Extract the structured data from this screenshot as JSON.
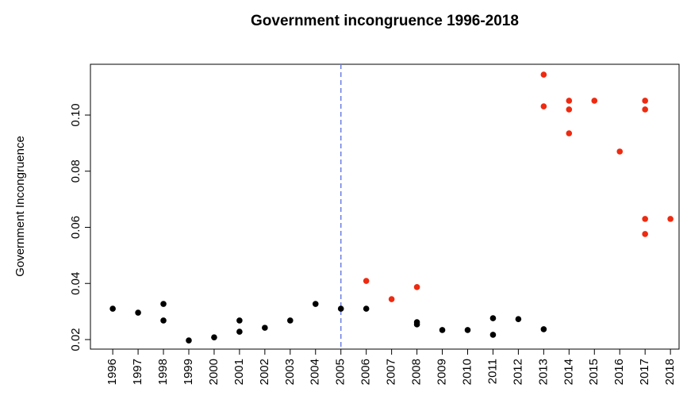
{
  "chart_data": {
    "type": "scatter",
    "title": "Government incongruence 1996-2018",
    "y_label": "Government Incongruence",
    "xlim": [
      1995.12,
      2018.34
    ],
    "ylim": [
      0.0166,
      0.1181
    ],
    "xticks": [
      1996,
      1997,
      1998,
      1999,
      2000,
      2001,
      2002,
      2003,
      2004,
      2005,
      2006,
      2007,
      2008,
      2009,
      2010,
      2011,
      2012,
      2013,
      2014,
      2015,
      2016,
      2017,
      2018
    ],
    "yticks": [
      0.02,
      0.04,
      0.06,
      0.08,
      {
        "value": 0.1,
        "label": "0.10"
      }
    ],
    "vline": {
      "x": 2005,
      "color": "#6b7fe6"
    },
    "series": [
      {
        "color": "#000000",
        "x": [
          1996,
          1997,
          1998,
          1998,
          1999,
          2000,
          2001,
          2001,
          2002,
          2003,
          2004,
          2005,
          2006,
          2008,
          2008,
          2009,
          2010,
          2011,
          2011,
          2012,
          2013
        ],
        "values": [
          0.031,
          0.0296,
          0.0327,
          0.0268,
          0.0197,
          0.0208,
          0.0268,
          0.0228,
          0.0242,
          0.0268,
          0.0327,
          0.031,
          0.031,
          0.0262,
          0.0254,
          0.0234,
          0.0234,
          0.0276,
          0.0217,
          0.0273,
          0.0237
        ]
      },
      {
        "color": "#ee2a10",
        "x": [
          2006,
          2007,
          2008,
          2013,
          2013,
          2014,
          2014,
          2014,
          2015,
          2016,
          2017,
          2017,
          2017,
          2017,
          2018
        ],
        "values": [
          0.0409,
          0.0344,
          0.0387,
          0.1144,
          0.1031,
          0.1051,
          0.102,
          0.0935,
          0.1051,
          0.087,
          0.1051,
          0.102,
          0.063,
          0.0576,
          0.063
        ]
      }
    ]
  }
}
